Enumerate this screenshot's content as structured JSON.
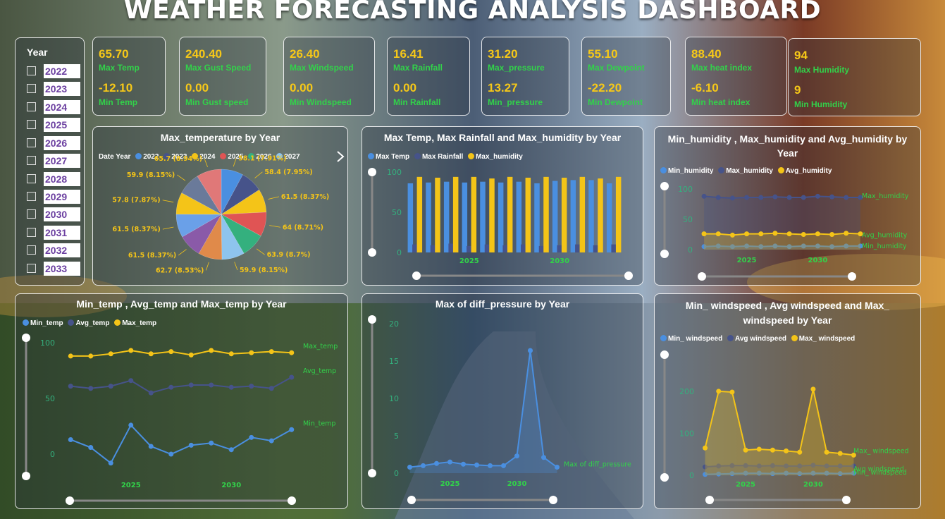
{
  "title": "WEATHER FORECASTING ANALYSIS DASHBOARD",
  "year_filter": {
    "header": "Year",
    "items": [
      "2022",
      "2023",
      "2024",
      "2025",
      "2026",
      "2027",
      "2028",
      "2029",
      "2030",
      "2031",
      "2032",
      "2033"
    ]
  },
  "kpis": [
    {
      "max_value": "65.70",
      "max_label": "Max Temp",
      "min_value": "-12.10",
      "min_label": "Min Temp"
    },
    {
      "max_value": "240.40",
      "max_label": "Max Gust Speed",
      "min_value": "0.00",
      "min_label": "Min Gust speed"
    },
    {
      "max_value": "26.40",
      "max_label": "Max Windspeed",
      "min_value": "0.00",
      "min_label": "Min Windspeed"
    },
    {
      "max_value": "16.41",
      "max_label": "Max Rainfall",
      "min_value": "0.00",
      "min_label": "Min Rainfall"
    },
    {
      "max_value": "31.20",
      "max_label": "Max_pressure",
      "min_value": "13.27",
      "min_label": "Min_pressure"
    },
    {
      "max_value": "55.10",
      "max_label": "Max Dewpoint",
      "min_value": "-22.20",
      "min_label": "Min Dewpoint"
    },
    {
      "max_value": "88.40",
      "max_label": "Max heat index",
      "min_value": "-6.10",
      "min_label": "Min heat index"
    },
    {
      "max_value": "94",
      "max_label": "Max Humidity",
      "min_value": "9",
      "min_label": "Min Humidity"
    }
  ],
  "colors": {
    "blue": "#4a8fe0",
    "navy": "#46538a",
    "yellow": "#f4c418",
    "red": "#e05454",
    "green": "#34b07e",
    "lightblue": "#8ec4ee",
    "value": "#f6c818",
    "label": "#32d24a",
    "axis": "#34b07e"
  },
  "chart_data": [
    {
      "type": "pie",
      "title": "Max_temperature by Year",
      "legend_title": "Date Year",
      "legend_entries": [
        "2022",
        "2023",
        "2024",
        "2025",
        "2026",
        "2027"
      ],
      "slice_colors": [
        "#4a8fe0",
        "#46538a",
        "#f4c418",
        "#e05454",
        "#34b07e",
        "#8ec4ee",
        "#e08a4a",
        "#8a5aa8",
        "#6aa0e8",
        "#f4c418",
        "#6a7a9a",
        "#e07878"
      ],
      "slices": [
        {
          "value": 58.1,
          "label": "58.1 (7.91%)"
        },
        {
          "value": 58.4,
          "label": "58.4 (7.95%)"
        },
        {
          "value": 61.5,
          "label": "61.5 (8.37%)"
        },
        {
          "value": 64,
          "label": "64 (8.71%)"
        },
        {
          "value": 63.9,
          "label": "63.9 (8.7%)"
        },
        {
          "value": 59.9,
          "label": "59.9 (8.15%)"
        },
        {
          "value": 62.7,
          "label": "62.7 (8.53%)"
        },
        {
          "value": 61.5,
          "label": "61.5 (8.37%)"
        },
        {
          "value": 61.5,
          "label": "61.5 (8.37%)"
        },
        {
          "value": 57.8,
          "label": "57.8 (7.87%)"
        },
        {
          "value": 59.9,
          "label": "59.9 (8.15%)"
        },
        {
          "value": 65.7,
          "label": "65.7 (8.94%)"
        }
      ]
    },
    {
      "type": "bar",
      "title": "Max Temp, Max Rainfall and Max_humidity by Year",
      "x": [
        2022,
        2023,
        2024,
        2025,
        2026,
        2027,
        2028,
        2029,
        2030,
        2031,
        2032,
        2033
      ],
      "x_ticks": [
        2025,
        2030
      ],
      "y_ticks": [
        0,
        50,
        100
      ],
      "ylim": [
        0,
        100
      ],
      "series": [
        {
          "name": "Max Temp",
          "color": "#4a8fe0",
          "values": [
            86,
            87,
            88,
            87,
            88,
            87,
            88,
            86,
            89,
            90,
            90,
            86
          ]
        },
        {
          "name": "Max Rainfall",
          "color": "#46538a",
          "values": [
            10,
            9,
            11,
            8,
            10,
            9,
            10,
            8,
            9,
            10,
            9,
            10
          ]
        },
        {
          "name": "Max_humidity",
          "color": "#f4c418",
          "values": [
            94,
            93,
            94,
            94,
            92,
            94,
            93,
            94,
            93,
            94,
            92,
            94
          ]
        }
      ]
    },
    {
      "type": "area",
      "title": "Min_humidity , Max_humidity and Avg_humidity by Year",
      "x": [
        2022,
        2023,
        2024,
        2025,
        2026,
        2027,
        2028,
        2029,
        2030,
        2031,
        2032,
        2033
      ],
      "x_ticks": [
        2025,
        2030
      ],
      "y_ticks": [
        0,
        50,
        100
      ],
      "ylim": [
        0,
        100
      ],
      "series": [
        {
          "name": "Min_humidity",
          "color": "#4a8fe0",
          "end_label": "Min_humidity",
          "values": [
            5,
            6,
            5,
            6,
            5,
            6,
            5,
            6,
            6,
            5,
            6,
            6
          ]
        },
        {
          "name": "Max_humidity",
          "color": "#46538a",
          "end_label": "Max_humidity",
          "values": [
            88,
            86,
            85,
            86,
            86,
            87,
            86,
            86,
            88,
            87,
            86,
            86
          ]
        },
        {
          "name": "Avg_humidity",
          "color": "#f4c418",
          "end_label": "Avg_humidity",
          "values": [
            26,
            26,
            24,
            26,
            26,
            27,
            26,
            25,
            26,
            25,
            27,
            26
          ]
        }
      ]
    },
    {
      "type": "line",
      "title": "Min_temp , Avg_temp and Max_temp by Year",
      "x": [
        2022,
        2023,
        2024,
        2025,
        2026,
        2027,
        2028,
        2029,
        2030,
        2031,
        2032,
        2033
      ],
      "x_ticks": [
        2025,
        2030
      ],
      "y_ticks": [
        0,
        50,
        100
      ],
      "ylim": [
        -12,
        112
      ],
      "series": [
        {
          "name": "Min_temp",
          "color": "#4a8fe0",
          "end_label": "Min_temp",
          "values": [
            13,
            6,
            -8,
            26,
            7,
            0,
            8,
            10,
            4,
            15,
            12,
            22
          ]
        },
        {
          "name": "Avg_temp",
          "color": "#46538a",
          "end_label": "Avg_temp",
          "values": [
            61,
            59,
            61,
            66,
            55,
            60,
            62,
            62,
            60,
            61,
            59,
            69
          ]
        },
        {
          "name": "Max_temp",
          "color": "#f4c418",
          "end_label": "Max_temp",
          "values": [
            88,
            88,
            90,
            93,
            90,
            92,
            89,
            93,
            90,
            91,
            92,
            91
          ]
        }
      ]
    },
    {
      "type": "area",
      "title": "Max of diff_pressure by Year",
      "x": [
        2022,
        2023,
        2024,
        2025,
        2026,
        2027,
        2028,
        2029,
        2030,
        2031,
        2032,
        2033
      ],
      "x_ticks": [
        2025,
        2030
      ],
      "y_ticks": [
        0,
        5,
        10,
        15,
        20
      ],
      "ylim": [
        0,
        20
      ],
      "series": [
        {
          "name": "Max of diff_pressure",
          "color": "#4a8fe0",
          "end_label": "Max of diff_pressure",
          "values": [
            0.8,
            1.0,
            1.3,
            1.5,
            1.2,
            1.1,
            1.0,
            1.0,
            2.3,
            16.4,
            2.1,
            0.8
          ]
        }
      ]
    },
    {
      "type": "area",
      "title": "Min_ windspeed , Avg windspeed and Max_ windspeed by Year",
      "x": [
        2022,
        2023,
        2024,
        2025,
        2026,
        2027,
        2028,
        2029,
        2030,
        2031,
        2032,
        2033
      ],
      "x_ticks": [
        2025,
        2030
      ],
      "y_ticks": [
        0,
        100,
        200
      ],
      "ylim": [
        0,
        240
      ],
      "series": [
        {
          "name": "Min_ windspeed",
          "color": "#4a8fe0",
          "end_label": "Min_ windspeed",
          "values": [
            2,
            3,
            4,
            5,
            5,
            4,
            5,
            4,
            5,
            5,
            4,
            5
          ]
        },
        {
          "name": "Avg windspeed",
          "color": "#46538a",
          "end_label": "Avg windspeed",
          "values": [
            20,
            22,
            23,
            23,
            22,
            23,
            22,
            22,
            24,
            22,
            22,
            22
          ]
        },
        {
          "name": "Max_ windspeed",
          "color": "#f4c418",
          "end_label": "Max_ windspeed",
          "values": [
            65,
            200,
            198,
            60,
            62,
            60,
            58,
            55,
            205,
            55,
            52,
            48
          ]
        }
      ]
    }
  ]
}
